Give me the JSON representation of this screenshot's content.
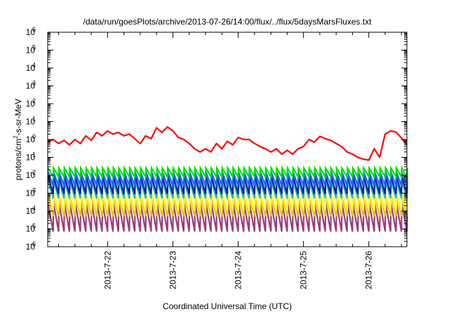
{
  "chart_data": {
    "type": "line",
    "title": "/data/run/goesPlots/archive/2013-07-26/14:00/flux/../flux/5daysMarsFluxes.txt",
    "xlabel": "Coordinated Universal Time (UTC)",
    "ylabel": {
      "prefix": "protons/cm",
      "sup": "2",
      "suffix": "-s-sr-MeV"
    },
    "yscale": "log",
    "ylim": [
      1e-06,
      1000000.0
    ],
    "y_ticks": [
      {
        "exp": "-6"
      },
      {
        "exp": "-5"
      },
      {
        "exp": "-4"
      },
      {
        "exp": "-3"
      },
      {
        "exp": "-2"
      },
      {
        "exp": "-1"
      },
      {
        "exp": "0"
      },
      {
        "exp": "1"
      },
      {
        "exp": "2"
      },
      {
        "exp": "3"
      },
      {
        "exp": "4"
      },
      {
        "exp": "5"
      },
      {
        "exp": "6"
      }
    ],
    "xlim": [
      "2013-07-21T02:00",
      "2013-07-26T14:00"
    ],
    "x_ticks": [
      {
        "value": "2013-07-22T00:00",
        "label": "2013-7-22"
      },
      {
        "value": "2013-07-23T00:00",
        "label": "2013-7-23"
      },
      {
        "value": "2013-07-24T00:00",
        "label": "2013-7-24"
      },
      {
        "value": "2013-07-25T00:00",
        "label": "2013-7-25"
      },
      {
        "value": "2013-07-26T00:00",
        "label": "2013-7-26"
      }
    ],
    "grid": false,
    "legend": "none",
    "series": [
      {
        "color": "#ff0000",
        "x": [
          "2013-07-21T02:00",
          "2013-07-21T04:00",
          "2013-07-21T06:00",
          "2013-07-21T08:00",
          "2013-07-21T10:00",
          "2013-07-21T12:00",
          "2013-07-21T14:00",
          "2013-07-21T16:00",
          "2013-07-21T18:00",
          "2013-07-21T20:00",
          "2013-07-21T22:00",
          "2013-07-22T00:00",
          "2013-07-22T02:00",
          "2013-07-22T04:00",
          "2013-07-22T06:00",
          "2013-07-22T08:00",
          "2013-07-22T10:00",
          "2013-07-22T12:00",
          "2013-07-22T14:00",
          "2013-07-22T16:00",
          "2013-07-22T18:00",
          "2013-07-22T20:00",
          "2013-07-22T22:00",
          "2013-07-23T00:00",
          "2013-07-23T02:00",
          "2013-07-23T04:00",
          "2013-07-23T06:00",
          "2013-07-23T08:00",
          "2013-07-23T10:00",
          "2013-07-23T12:00",
          "2013-07-23T14:00",
          "2013-07-23T16:00",
          "2013-07-23T18:00",
          "2013-07-23T20:00",
          "2013-07-23T22:00",
          "2013-07-24T00:00",
          "2013-07-24T02:00",
          "2013-07-24T04:00",
          "2013-07-24T06:00",
          "2013-07-24T08:00",
          "2013-07-24T10:00",
          "2013-07-24T12:00",
          "2013-07-24T14:00",
          "2013-07-24T16:00",
          "2013-07-24T18:00",
          "2013-07-24T20:00",
          "2013-07-24T22:00",
          "2013-07-25T00:00",
          "2013-07-25T02:00",
          "2013-07-25T04:00",
          "2013-07-25T06:00",
          "2013-07-25T08:00",
          "2013-07-25T10:00",
          "2013-07-25T12:00",
          "2013-07-25T14:00",
          "2013-07-25T16:00",
          "2013-07-25T18:00",
          "2013-07-25T20:00",
          "2013-07-25T22:00",
          "2013-07-26T00:00",
          "2013-07-26T02:00",
          "2013-07-26T04:00",
          "2013-07-26T06:00",
          "2013-07-26T08:00",
          "2013-07-26T10:00",
          "2013-07-26T12:00",
          "2013-07-26T14:00"
        ],
        "y": [
          0.7,
          1.0,
          0.6,
          0.9,
          0.5,
          1.0,
          0.6,
          1.6,
          0.9,
          2.5,
          1.6,
          3.0,
          2.0,
          2.5,
          1.6,
          2.0,
          1.1,
          0.6,
          1.6,
          1.1,
          4.5,
          2.5,
          5.0,
          3.0,
          1.3,
          1.0,
          0.6,
          0.3,
          0.2,
          0.3,
          0.2,
          0.6,
          0.3,
          0.8,
          0.5,
          1.3,
          1.0,
          1.0,
          0.6,
          0.4,
          0.3,
          0.2,
          0.3,
          0.15,
          0.25,
          0.15,
          0.3,
          0.4,
          1.0,
          0.7,
          1.5,
          1.1,
          0.9,
          0.6,
          0.4,
          0.2,
          0.15,
          0.1,
          0.08,
          0.07,
          0.3,
          0.1,
          2.0,
          3.0,
          2.6,
          1.2,
          0.5
        ]
      }
    ]
  }
}
